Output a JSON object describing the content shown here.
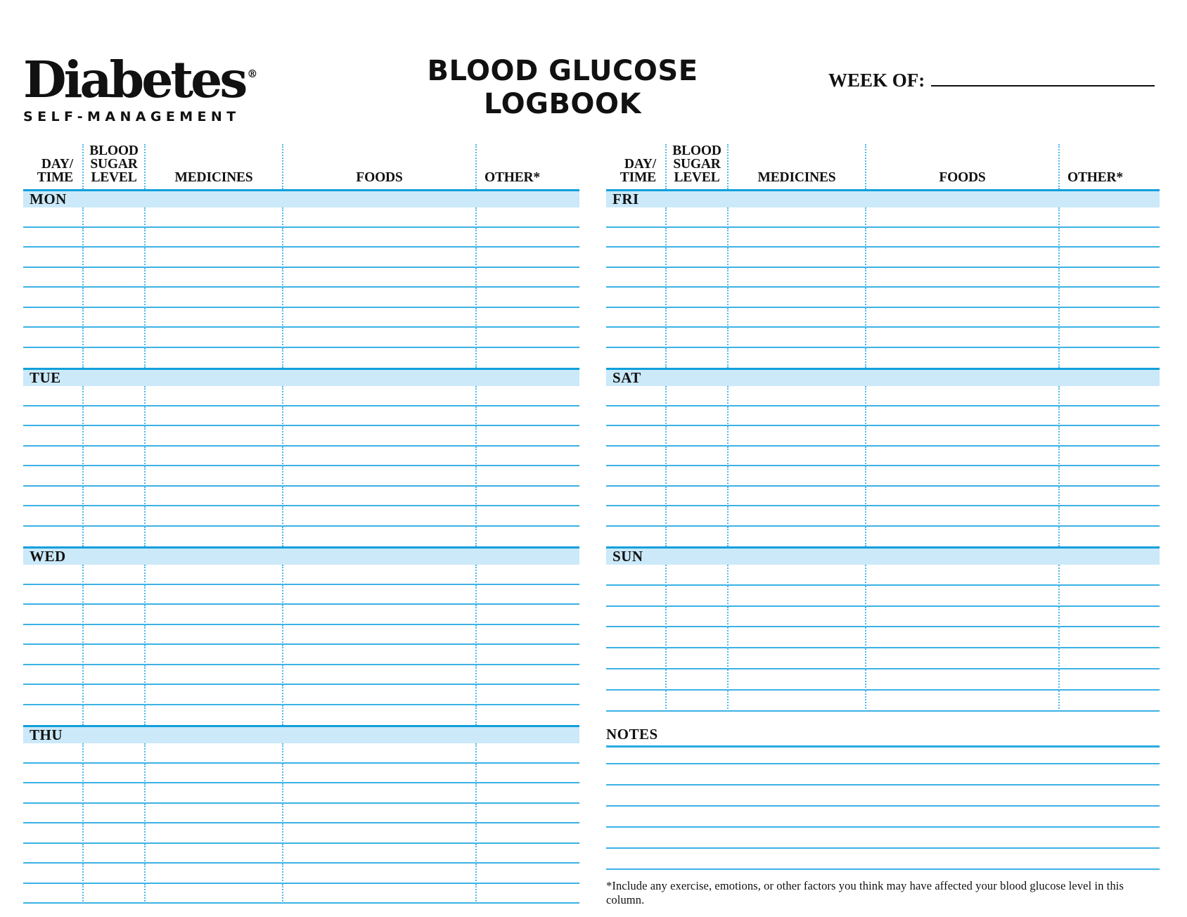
{
  "brand": {
    "name": "Diabetes",
    "trademark": "®",
    "subtitle": "SELF-MANAGEMENT"
  },
  "header": {
    "title": "BLOOD GLUCOSE\nLOGBOOK",
    "week_of_label": "WEEK OF:",
    "week_of_value": ""
  },
  "columns": [
    {
      "id": "day-time",
      "label": "DAY/\nTIME"
    },
    {
      "id": "blood-sugar-level",
      "label": "BLOOD\nSUGAR\nLEVEL"
    },
    {
      "id": "medicines",
      "label": "MEDICINES"
    },
    {
      "id": "foods",
      "label": "FOODS"
    },
    {
      "id": "other",
      "label": "OTHER*"
    }
  ],
  "left_days": [
    {
      "label": "MON",
      "rows": 8
    },
    {
      "label": "TUE",
      "rows": 8
    },
    {
      "label": "WED",
      "rows": 8
    },
    {
      "label": "THU",
      "rows": 8
    }
  ],
  "right_days": [
    {
      "label": "FRI",
      "rows": 8
    },
    {
      "label": "SAT",
      "rows": 8
    },
    {
      "label": "SUN",
      "rows": 7
    }
  ],
  "notes": {
    "label": "NOTES",
    "lines": 6
  },
  "footnote": "*Include any exercise, emotions, or other factors you think may have affected your blood glucose level in this column.",
  "colors": {
    "day_bar_fill": "#cbe9f9",
    "row_rule": "#3bb2e5",
    "section_rule": "#119fdb",
    "column_dots": "#4db9e9",
    "text": "#111111"
  }
}
